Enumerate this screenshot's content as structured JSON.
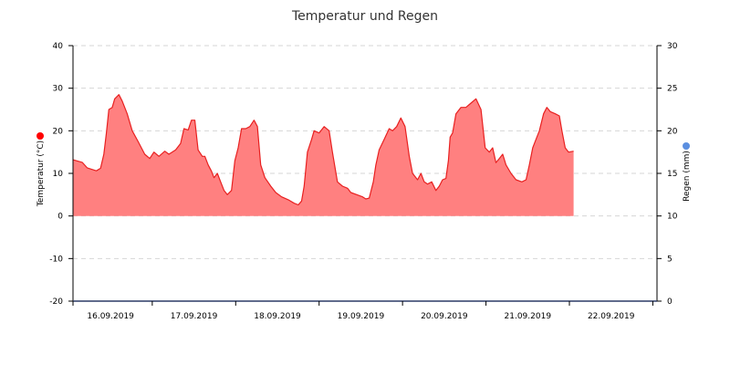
{
  "chart_data": {
    "type": "area",
    "title": "Temperatur und Regen",
    "y_left": {
      "label": "Temperatur (°C)",
      "min": -20,
      "max": 40,
      "ticks": [
        -20,
        -10,
        0,
        10,
        20,
        30,
        40
      ]
    },
    "y_right": {
      "label": "Regen (mm)",
      "min": 0,
      "max": 30,
      "ticks": [
        0,
        5,
        10,
        15,
        20,
        25,
        30
      ]
    },
    "x": {
      "min_day": 15.55,
      "max_day": 22.55,
      "tick_days": [
        16,
        17,
        18,
        19,
        20,
        21,
        22
      ],
      "tick_labels": [
        "16.09.2019",
        "17.09.2019",
        "18.09.2019",
        "19.09.2019",
        "20.09.2019",
        "21.09.2019",
        "22.09.2019"
      ]
    },
    "grid": true,
    "series": [
      {
        "name": "Temperatur (°C)",
        "axis": "left",
        "color": "#e82020",
        "fill": "#ff8080",
        "points": [
          [
            15.55,
            13.2
          ],
          [
            15.66,
            12.6
          ],
          [
            15.72,
            11.3
          ],
          [
            15.83,
            10.6
          ],
          [
            15.88,
            11.2
          ],
          [
            15.92,
            14.5
          ],
          [
            15.95,
            19.5
          ],
          [
            15.98,
            25
          ],
          [
            16.02,
            25.5
          ],
          [
            16.05,
            27.5
          ],
          [
            16.1,
            28.5
          ],
          [
            16.14,
            27
          ],
          [
            16.2,
            24
          ],
          [
            16.26,
            20
          ],
          [
            16.33,
            17.5
          ],
          [
            16.41,
            14.5
          ],
          [
            16.47,
            13.5
          ],
          [
            16.52,
            15
          ],
          [
            16.58,
            14
          ],
          [
            16.65,
            15.2
          ],
          [
            16.7,
            14.5
          ],
          [
            16.78,
            15.5
          ],
          [
            16.84,
            17
          ],
          [
            16.88,
            20.5
          ],
          [
            16.93,
            20.2
          ],
          [
            16.97,
            22.5
          ],
          [
            17.01,
            22.5
          ],
          [
            17.05,
            15.5
          ],
          [
            17.1,
            14
          ],
          [
            17.13,
            14
          ],
          [
            17.17,
            12
          ],
          [
            17.21,
            10.5
          ],
          [
            17.24,
            9
          ],
          [
            17.28,
            10
          ],
          [
            17.32,
            8
          ],
          [
            17.36,
            6
          ],
          [
            17.4,
            5
          ],
          [
            17.45,
            6
          ],
          [
            17.49,
            13
          ],
          [
            17.53,
            16
          ],
          [
            17.57,
            20.5
          ],
          [
            17.62,
            20.5
          ],
          [
            17.67,
            21
          ],
          [
            17.72,
            22.5
          ],
          [
            17.76,
            21
          ],
          [
            17.8,
            12
          ],
          [
            17.85,
            9
          ],
          [
            17.92,
            7
          ],
          [
            17.98,
            5.5
          ],
          [
            18.05,
            4.5
          ],
          [
            18.13,
            3.8
          ],
          [
            18.2,
            3
          ],
          [
            18.25,
            2.6
          ],
          [
            18.29,
            3.5
          ],
          [
            18.32,
            7
          ],
          [
            18.36,
            15
          ],
          [
            18.41,
            18
          ],
          [
            18.44,
            20
          ],
          [
            18.5,
            19.5
          ],
          [
            18.56,
            21
          ],
          [
            18.62,
            20
          ],
          [
            18.66,
            15
          ],
          [
            18.72,
            8
          ],
          [
            18.78,
            7
          ],
          [
            18.84,
            6.5
          ],
          [
            18.88,
            5.5
          ],
          [
            18.95,
            5
          ],
          [
            19.02,
            4.5
          ],
          [
            19.06,
            4
          ],
          [
            19.1,
            4.2
          ],
          [
            19.15,
            8
          ],
          [
            19.18,
            12
          ],
          [
            19.22,
            15.5
          ],
          [
            19.28,
            18
          ],
          [
            19.34,
            20.5
          ],
          [
            19.38,
            20
          ],
          [
            19.43,
            21
          ],
          [
            19.48,
            23
          ],
          [
            19.53,
            21
          ],
          [
            19.58,
            14
          ],
          [
            19.62,
            10
          ],
          [
            19.68,
            8.5
          ],
          [
            19.72,
            10
          ],
          [
            19.76,
            8
          ],
          [
            19.8,
            7.5
          ],
          [
            19.85,
            8
          ],
          [
            19.9,
            6
          ],
          [
            19.94,
            7
          ],
          [
            19.98,
            8.5
          ],
          [
            20.02,
            8.8
          ],
          [
            20.05,
            13
          ],
          [
            20.07,
            18.5
          ],
          [
            20.1,
            19.5
          ],
          [
            20.14,
            24
          ],
          [
            20.2,
            25.5
          ],
          [
            20.26,
            25.5
          ],
          [
            20.32,
            26.5
          ],
          [
            20.38,
            27.5
          ],
          [
            20.44,
            25
          ],
          [
            20.49,
            16
          ],
          [
            20.54,
            15
          ],
          [
            20.58,
            16
          ],
          [
            20.62,
            12.5
          ],
          [
            20.66,
            13.5
          ],
          [
            20.7,
            14.5
          ],
          [
            20.74,
            12
          ],
          [
            20.8,
            10
          ],
          [
            20.86,
            8.5
          ],
          [
            20.93,
            8
          ],
          [
            20.98,
            8.5
          ],
          [
            21.02,
            12
          ],
          [
            21.06,
            16
          ],
          [
            21.1,
            18
          ],
          [
            21.14,
            20
          ],
          [
            21.19,
            24
          ],
          [
            21.23,
            25.5
          ],
          [
            21.27,
            24.5
          ],
          [
            21.33,
            24
          ],
          [
            21.38,
            23.5
          ],
          [
            21.41,
            20
          ],
          [
            21.45,
            16
          ],
          [
            21.49,
            15
          ],
          [
            21.55,
            15.2
          ]
        ]
      }
    ]
  }
}
